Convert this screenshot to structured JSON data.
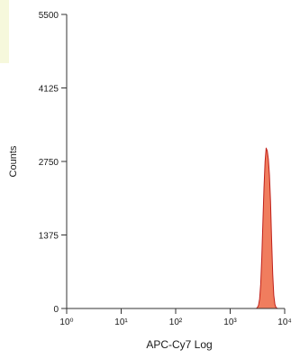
{
  "chart_data": {
    "type": "area",
    "xlabel": "APC-Cy7 Log",
    "ylabel": "Counts",
    "x_scale": "log10",
    "xlim": [
      1,
      10000
    ],
    "ylim": [
      0,
      5500
    ],
    "x_ticks": [
      {
        "value": 1,
        "label": "10⁰"
      },
      {
        "value": 10,
        "label": "10¹"
      },
      {
        "value": 100,
        "label": "10²"
      },
      {
        "value": 1000,
        "label": "10³"
      },
      {
        "value": 10000,
        "label": "10⁴"
      }
    ],
    "y_ticks": [
      {
        "value": 0,
        "label": "0"
      },
      {
        "value": 1375,
        "label": "1375"
      },
      {
        "value": 2750,
        "label": "2750"
      },
      {
        "value": 4125,
        "label": "4125"
      },
      {
        "value": 5500,
        "label": "5500"
      }
    ],
    "grid": false,
    "fill_color": "#f07d5e",
    "stroke_color": "#c0201a",
    "series": [
      {
        "x": [
          3020,
          3160,
          3310,
          3470,
          3630,
          3800,
          3980,
          4170,
          4370,
          4570,
          4790,
          5010,
          5250,
          5500,
          5750,
          6030,
          6310,
          6610,
          6920,
          7240,
          7590
        ],
        "y": [
          0,
          20,
          60,
          180,
          450,
          950,
          1600,
          2250,
          2750,
          3000,
          2950,
          2800,
          2500,
          2000,
          1300,
          650,
          250,
          80,
          20,
          5,
          0
        ]
      }
    ]
  }
}
